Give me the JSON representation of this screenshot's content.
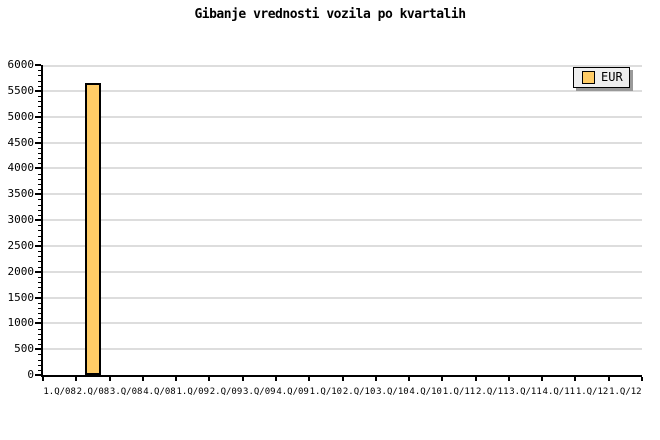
{
  "title": "Gibanje vrednosti vozila po kvartalih",
  "legend": {
    "label": "EUR",
    "position": "top-right"
  },
  "colors": {
    "background": "#FFFFFF",
    "bar_fill": "#FFCC66",
    "bar_border": "#000000",
    "gridline": "#DDDDDD",
    "axis": "#000000",
    "legend_bg": "#EEEEEE",
    "legend_border": "#000000",
    "legend_shadow": "#999999",
    "text": "#000000"
  },
  "chart_data": {
    "type": "bar",
    "title": "Gibanje vrednosti vozila po kvartalih",
    "xlabel": "",
    "ylabel": "",
    "categories": [
      "1.Q/08",
      "2.Q/08",
      "3.Q/08",
      "4.Q/08",
      "1.Q/09",
      "2.Q/09",
      "3.Q/09",
      "4.Q/09",
      "1.Q/10",
      "2.Q/10",
      "3.Q/10",
      "4.Q/10",
      "1.Q/11",
      "2.Q/11",
      "3.Q/11",
      "4.Q/11",
      "1.Q/12",
      "1.Q/12"
    ],
    "series": [
      {
        "name": "EUR",
        "color": "#FFCC66",
        "values": [
          null,
          5660,
          null,
          null,
          null,
          null,
          null,
          null,
          null,
          null,
          null,
          null,
          null,
          null,
          null,
          null,
          null,
          null
        ]
      }
    ],
    "ylim": [
      0,
      6000
    ],
    "ytick_step": 500,
    "y_minor_tick_step": 100,
    "ytick_labels": [
      "0",
      "500",
      "1000",
      "1500",
      "2000",
      "2500",
      "3000",
      "3500",
      "4000",
      "4500",
      "5000",
      "5500",
      "6000"
    ],
    "grid": "horizontal",
    "legend_position": "top-right"
  }
}
